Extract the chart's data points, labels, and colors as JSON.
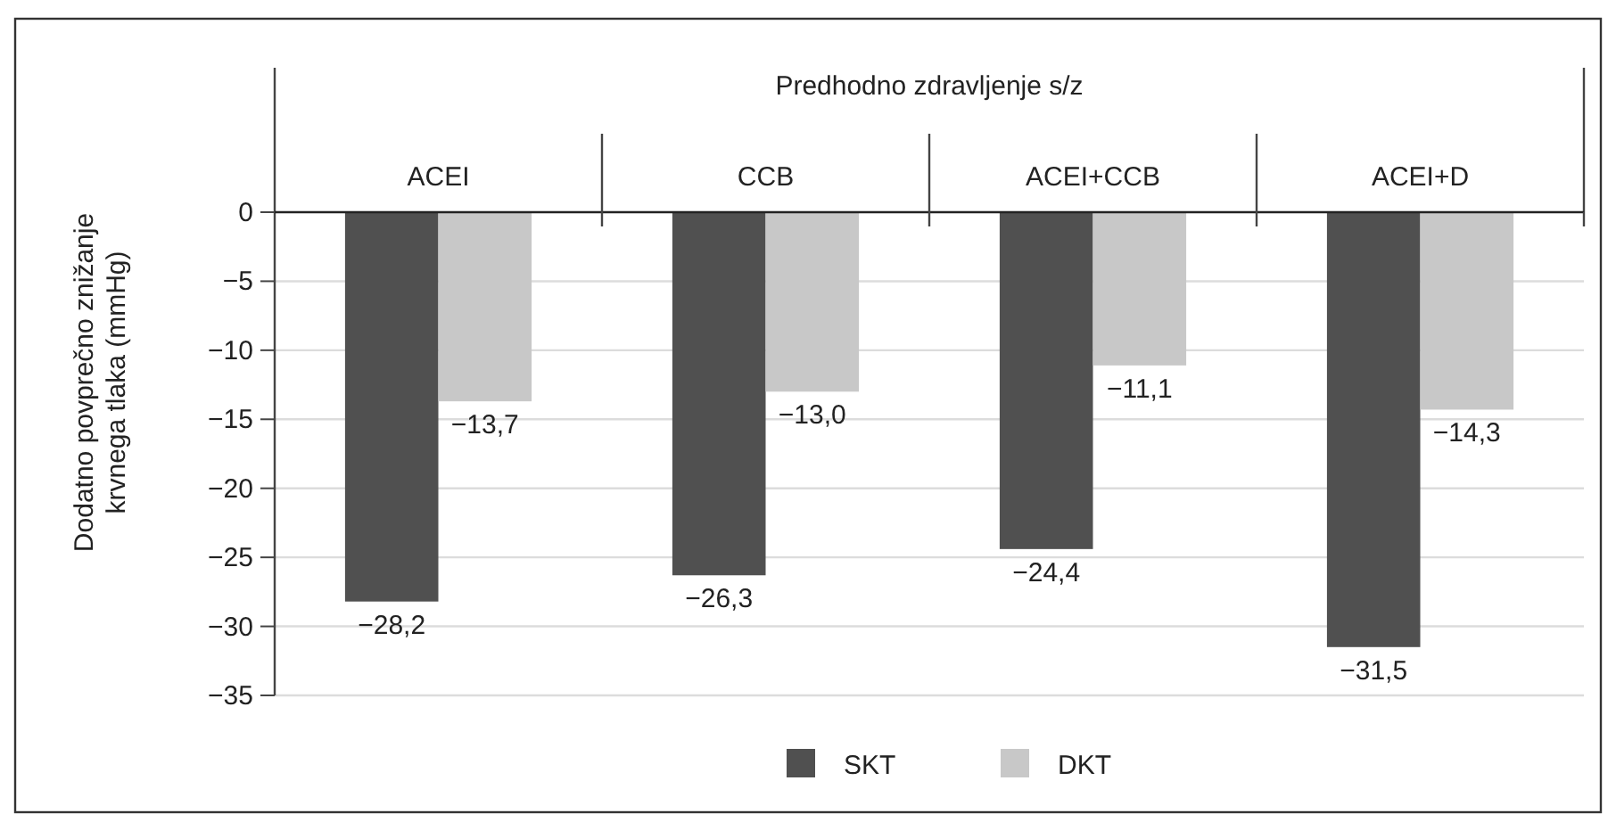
{
  "chart_data": {
    "type": "bar",
    "xlabel": "Predhodno zdravljenje s/z",
    "ylabel": "Dodatno povprečno znižanje krvnega tlaka (mmHg)",
    "categories": [
      "ACEI",
      "CCB",
      "ACEI+CCB",
      "ACEI+D"
    ],
    "series": [
      {
        "name": "SKT",
        "color": "#505050",
        "values": [
          -28.2,
          -26.3,
          -24.4,
          -31.5
        ],
        "value_labels": [
          "−28,2",
          "−26,3",
          "−24,4",
          "−31,5"
        ]
      },
      {
        "name": "DKT",
        "color": "#c8c8c8",
        "values": [
          -13.7,
          -13.0,
          -11.1,
          -14.3
        ],
        "value_labels": [
          "−13,7",
          "−13,0",
          "−11,1",
          "−14,3"
        ]
      }
    ],
    "ylim": [
      -35,
      0
    ],
    "yticks": [
      0,
      {
        "value": -5,
        "label": "−5"
      },
      {
        "value": -10,
        "label": "−10"
      },
      {
        "value": -15,
        "label": "−15"
      },
      {
        "value": -20,
        "label": "−20"
      },
      {
        "value": -25,
        "label": "−25"
      },
      {
        "value": -30,
        "label": "−30"
      },
      {
        "value": -35,
        "label": "−35"
      }
    ],
    "grid": "y",
    "legend": "bottom"
  }
}
